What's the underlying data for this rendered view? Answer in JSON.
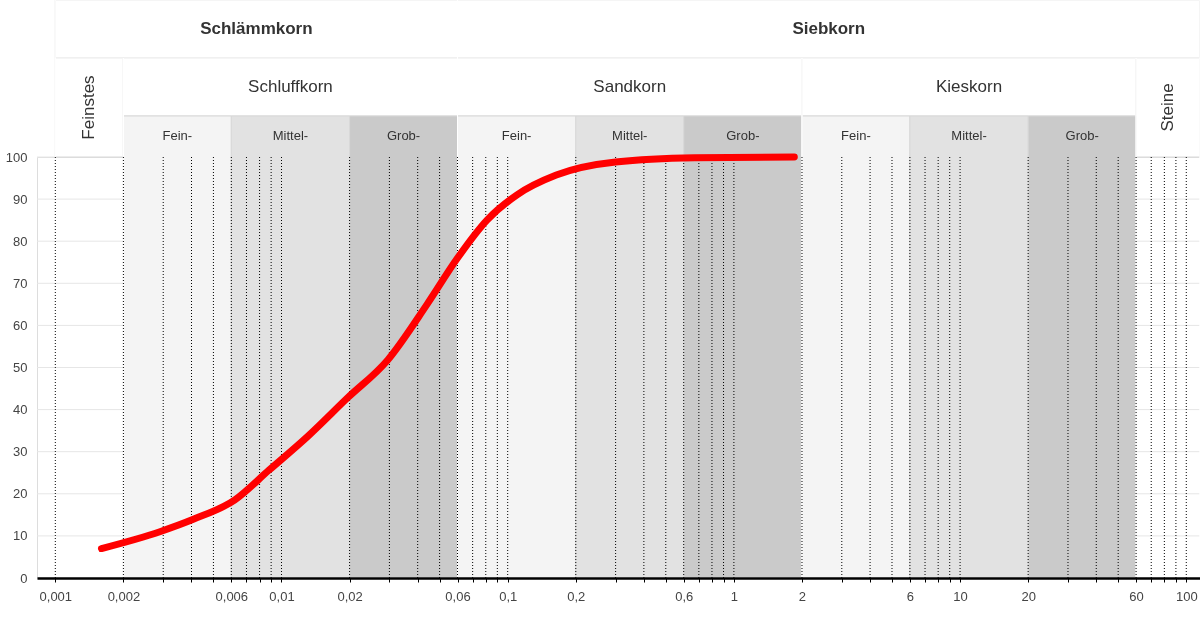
{
  "chart_data": {
    "type": "line",
    "log": "x",
    "grid": true,
    "xlim": [
      0.00083,
      115
    ],
    "ylim": [
      0,
      100
    ],
    "xticks": [
      {
        "value": 0.001,
        "label": "0,001"
      },
      {
        "value": 0.002,
        "label": "0,002"
      },
      {
        "value": 0.003,
        "label": null
      },
      {
        "value": 0.004,
        "label": null
      },
      {
        "value": 0.005,
        "label": null
      },
      {
        "value": 0.006,
        "label": "0,006"
      },
      {
        "value": 0.007,
        "label": null
      },
      {
        "value": 0.008,
        "label": null
      },
      {
        "value": 0.009,
        "label": null
      },
      {
        "value": 0.01,
        "label": "0,01"
      },
      {
        "value": 0.02,
        "label": "0,02"
      },
      {
        "value": 0.03,
        "label": null
      },
      {
        "value": 0.04,
        "label": null
      },
      {
        "value": 0.05,
        "label": null
      },
      {
        "value": 0.06,
        "label": "0,06"
      },
      {
        "value": 0.07,
        "label": null
      },
      {
        "value": 0.08,
        "label": null
      },
      {
        "value": 0.09,
        "label": null
      },
      {
        "value": 0.1,
        "label": "0,1"
      },
      {
        "value": 0.2,
        "label": "0,2"
      },
      {
        "value": 0.3,
        "label": null
      },
      {
        "value": 0.4,
        "label": null
      },
      {
        "value": 0.5,
        "label": null
      },
      {
        "value": 0.6,
        "label": "0,6"
      },
      {
        "value": 0.7,
        "label": null
      },
      {
        "value": 0.8,
        "label": null
      },
      {
        "value": 0.9,
        "label": null
      },
      {
        "value": 1,
        "label": "1"
      },
      {
        "value": 2,
        "label": "2"
      },
      {
        "value": 3,
        "label": null
      },
      {
        "value": 4,
        "label": null
      },
      {
        "value": 5,
        "label": null
      },
      {
        "value": 6,
        "label": "6"
      },
      {
        "value": 7,
        "label": null
      },
      {
        "value": 8,
        "label": null
      },
      {
        "value": 9,
        "label": null
      },
      {
        "value": 10,
        "label": "10"
      },
      {
        "value": 20,
        "label": "20"
      },
      {
        "value": 30,
        "label": null
      },
      {
        "value": 40,
        "label": null
      },
      {
        "value": 50,
        "label": null
      },
      {
        "value": 60,
        "label": "60"
      },
      {
        "value": 70,
        "label": null
      },
      {
        "value": 80,
        "label": null
      },
      {
        "value": 90,
        "label": null
      },
      {
        "value": 100,
        "label": "100"
      }
    ],
    "yticks": [
      0,
      10,
      20,
      30,
      40,
      50,
      60,
      70,
      80,
      90,
      100
    ],
    "series": [
      {
        "color": "#ff0000",
        "x": [
          0.0016,
          0.0029,
          0.0041,
          0.0062,
          0.0088,
          0.0131,
          0.0196,
          0.0295,
          0.044,
          0.06,
          0.081,
          0.11,
          0.164,
          0.3,
          0.67,
          1.85
        ],
        "values": [
          7,
          11,
          14,
          18.5,
          25.6,
          33.7,
          42.8,
          51.8,
          65,
          76,
          85,
          91,
          95.7,
          98.8,
          99.8,
          100
        ]
      }
    ],
    "bands": [
      {
        "axis": "x",
        "from": 0.001,
        "to": 0.06,
        "label": "Schlämmkorn"
      },
      {
        "axis": "x",
        "from": 0.06,
        "to": 115,
        "label": "Siebkorn"
      },
      {
        "axis": "x",
        "from": 0.001,
        "to": 0.002,
        "label": "Feinstes"
      },
      {
        "axis": "x",
        "from": 0.002,
        "to": 0.06,
        "label": "Schluffkorn"
      },
      {
        "axis": "x",
        "from": 0.06,
        "to": 2,
        "label": "Sandkorn"
      },
      {
        "axis": "x",
        "from": 2,
        "to": 60,
        "label": "Kieskorn"
      },
      {
        "axis": "x",
        "from": 60,
        "to": 115,
        "label": "Steine"
      },
      {
        "axis": "x",
        "from": 0.002,
        "to": 0.006,
        "label": "Fein-",
        "color": "#f4f4f4"
      },
      {
        "axis": "x",
        "from": 0.006,
        "to": 0.02,
        "label": "Mittel-",
        "color": "#e2e2e2"
      },
      {
        "axis": "x",
        "from": 0.02,
        "to": 0.06,
        "label": "Grob-",
        "color": "#c8c8c8"
      },
      {
        "axis": "x",
        "from": 0.06,
        "to": 0.2,
        "label": "Fein-",
        "color": "#f4f4f4"
      },
      {
        "axis": "x",
        "from": 0.2,
        "to": 0.6,
        "label": "Mittel-",
        "color": "#e2e2e2"
      },
      {
        "axis": "x",
        "from": 0.6,
        "to": 2,
        "label": "Grob-",
        "color": "#c8c8c8"
      },
      {
        "axis": "x",
        "from": 2,
        "to": 6,
        "label": "Fein-",
        "color": "#f4f4f4"
      },
      {
        "axis": "x",
        "from": 6,
        "to": 20,
        "label": "Mittel-",
        "color": "#e2e2e2"
      },
      {
        "axis": "x",
        "from": 20,
        "to": 60,
        "label": "Grob-",
        "color": "#c8c8c8"
      }
    ]
  }
}
